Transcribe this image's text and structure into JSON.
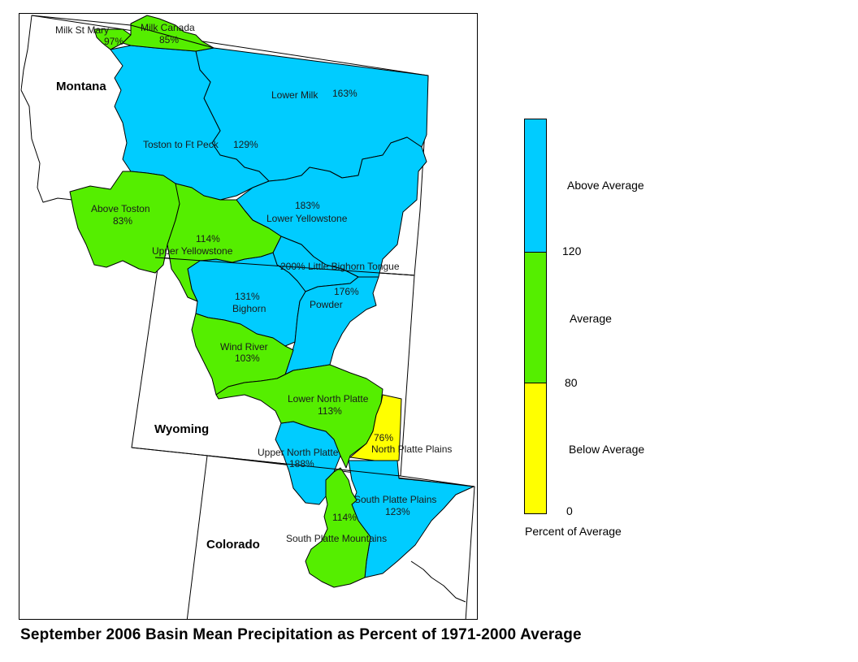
{
  "title": "September 2006 Basin Mean Precipitation as Percent of 1971-2000 Average",
  "states": {
    "montana": "Montana",
    "wyoming": "Wyoming",
    "colorado": "Colorado"
  },
  "colors": {
    "above": "#00ccff",
    "average": "#55ee00",
    "below": "#ffff00",
    "border": "#000000"
  },
  "basins": [
    {
      "id": "milk-st-mary",
      "name": "Milk St Mary",
      "percent": "97%",
      "category": "average"
    },
    {
      "id": "milk-canada",
      "name": "Milk Canada",
      "percent": "85%",
      "category": "average"
    },
    {
      "id": "lower-milk",
      "name": "Lower Milk",
      "percent": "163%",
      "category": "above"
    },
    {
      "id": "toston-ft-peck",
      "name": "Toston to Ft Peck",
      "percent": "129%",
      "category": "above"
    },
    {
      "id": "above-toston",
      "name": "Above Toston",
      "percent": "83%",
      "category": "average"
    },
    {
      "id": "lower-yellowstone",
      "name": "Lower Yellowstone",
      "percent": "183%",
      "category": "above"
    },
    {
      "id": "upper-yellowstone",
      "name": "Upper Yellowstone",
      "percent": "114%",
      "category": "average"
    },
    {
      "id": "little-bighorn-tongue",
      "name": "Little Bighorn Tongue",
      "percent": "200%",
      "category": "above"
    },
    {
      "id": "bighorn",
      "name": "Bighorn",
      "percent": "131%",
      "category": "above"
    },
    {
      "id": "powder",
      "name": "Powder",
      "percent": "176%",
      "category": "above"
    },
    {
      "id": "wind-river",
      "name": "Wind River",
      "percent": "103%",
      "category": "average"
    },
    {
      "id": "lower-north-platte",
      "name": "Lower North Platte",
      "percent": "113%",
      "category": "average"
    },
    {
      "id": "north-platte-plains",
      "name": "North Platte Plains",
      "percent": "76%",
      "category": "below"
    },
    {
      "id": "upper-north-platte",
      "name": "Upper North Platte",
      "percent": "188%",
      "category": "above"
    },
    {
      "id": "south-platte-plains",
      "name": "South Platte Plains",
      "percent": "123%",
      "category": "above"
    },
    {
      "id": "south-platte-mountains",
      "name": "South Platte Mountains",
      "percent": "114%",
      "category": "average"
    }
  ],
  "legend": {
    "bands": [
      {
        "label": "Above Average",
        "color": "#00ccff"
      },
      {
        "label": "Average",
        "color": "#55ee00"
      },
      {
        "label": "Below Average",
        "color": "#ffff00"
      }
    ],
    "ticks": [
      "120",
      "80",
      "0"
    ],
    "caption": "Percent of Average"
  }
}
